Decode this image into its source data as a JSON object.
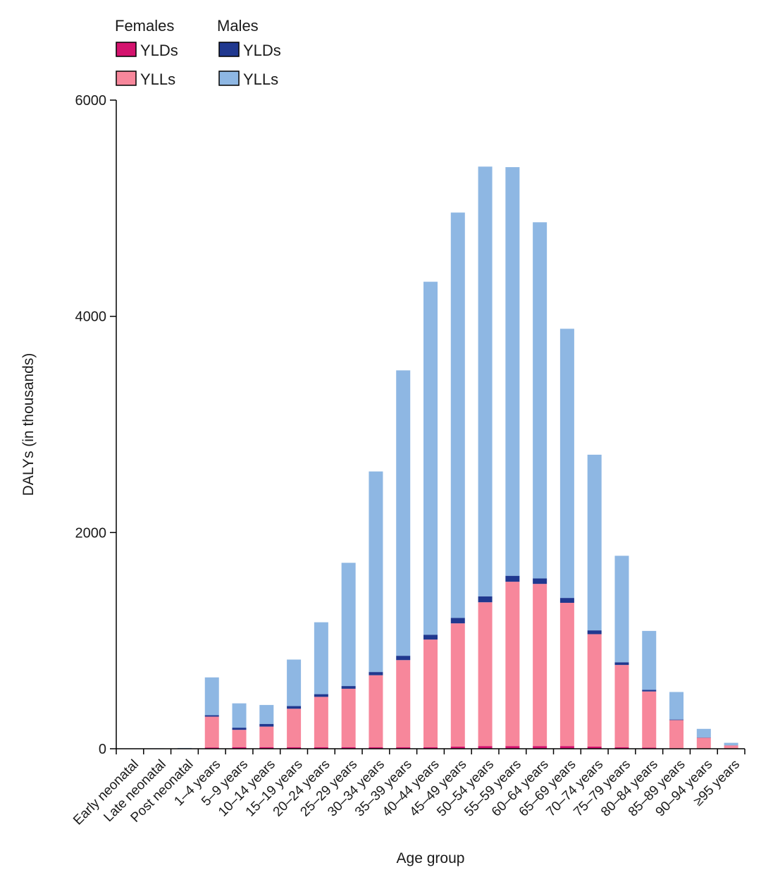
{
  "chart_data": {
    "type": "bar",
    "stacked": true,
    "xlabel": "Age group",
    "ylabel": "DALYs (in thousands)",
    "ylim": [
      0,
      6000
    ],
    "yticks": [
      0,
      2000,
      4000,
      6000
    ],
    "grid": false,
    "legend_position": "top-left",
    "legend": [
      {
        "group": "Females",
        "entries": [
          {
            "label": "YLDs",
            "color": "#d4136e",
            "series": "female_ylds"
          },
          {
            "label": "YLLs",
            "color": "#f7879b",
            "series": "female_ylls"
          }
        ]
      },
      {
        "group": "Males",
        "entries": [
          {
            "label": "YLDs",
            "color": "#20388f",
            "series": "male_ylds"
          },
          {
            "label": "YLLs",
            "color": "#8eb7e3",
            "series": "male_ylls"
          }
        ]
      }
    ],
    "categories": [
      "Early neonatal",
      "Late neonatal",
      "Post neonatal",
      "1–4 years",
      "5–9 years",
      "10–14 years",
      "15–19 years",
      "20–24 years",
      "25–29 years",
      "30–34 years",
      "35–39 years",
      "40–44 years",
      "45–49 years",
      "50–54 years",
      "55–59 years",
      "60–64 years",
      "65–69 years",
      "70–74 years",
      "75–79 years",
      "80–84 years",
      "85–89 years",
      "90–94 years",
      "≥95 years"
    ],
    "series": [
      {
        "key": "female_ylds",
        "color": "#d4136e",
        "values": [
          0,
          0,
          0,
          12,
          15,
          15,
          15,
          15,
          15,
          15,
          15,
          15,
          20,
          25,
          25,
          25,
          25,
          20,
          15,
          10,
          5,
          2,
          1
        ]
      },
      {
        "key": "female_ylls",
        "color": "#f7879b",
        "values": [
          1,
          1,
          3,
          285,
          160,
          190,
          355,
          465,
          540,
          665,
          805,
          995,
          1140,
          1330,
          1520,
          1500,
          1325,
          1040,
          760,
          520,
          260,
          100,
          30
        ]
      },
      {
        "key": "male_ylds",
        "color": "#20388f",
        "values": [
          0,
          0,
          0,
          13,
          20,
          25,
          25,
          25,
          25,
          30,
          40,
          45,
          50,
          55,
          55,
          50,
          45,
          35,
          25,
          15,
          5,
          2,
          1
        ]
      },
      {
        "key": "male_ylls",
        "color": "#8eb7e3",
        "values": [
          2,
          3,
          4,
          350,
          225,
          175,
          430,
          665,
          1140,
          1855,
          2640,
          3265,
          3750,
          3975,
          3780,
          3295,
          2490,
          1625,
          985,
          545,
          255,
          80,
          23
        ]
      }
    ]
  }
}
